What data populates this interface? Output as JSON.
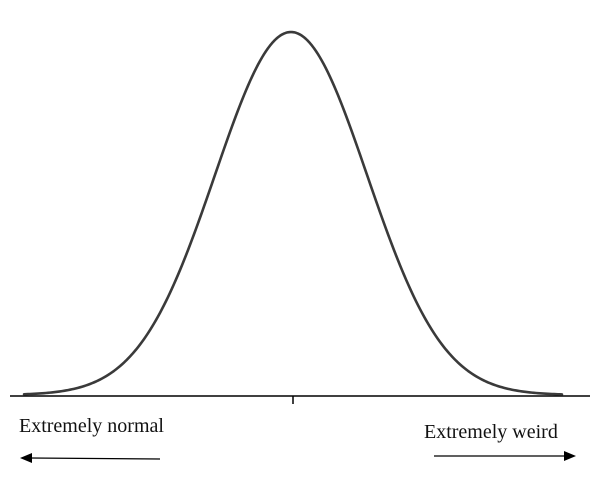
{
  "diagram": {
    "type": "bell-curve",
    "labels": {
      "left": "Extremely normal",
      "right": "Extremely weird"
    },
    "arrows": {
      "left": "left-arrow",
      "right": "right-arrow"
    },
    "center_tick": true,
    "colors": {
      "curve": "#3a3a3a",
      "axis": "#000000",
      "text": "#111111",
      "background": "#ffffff"
    }
  }
}
